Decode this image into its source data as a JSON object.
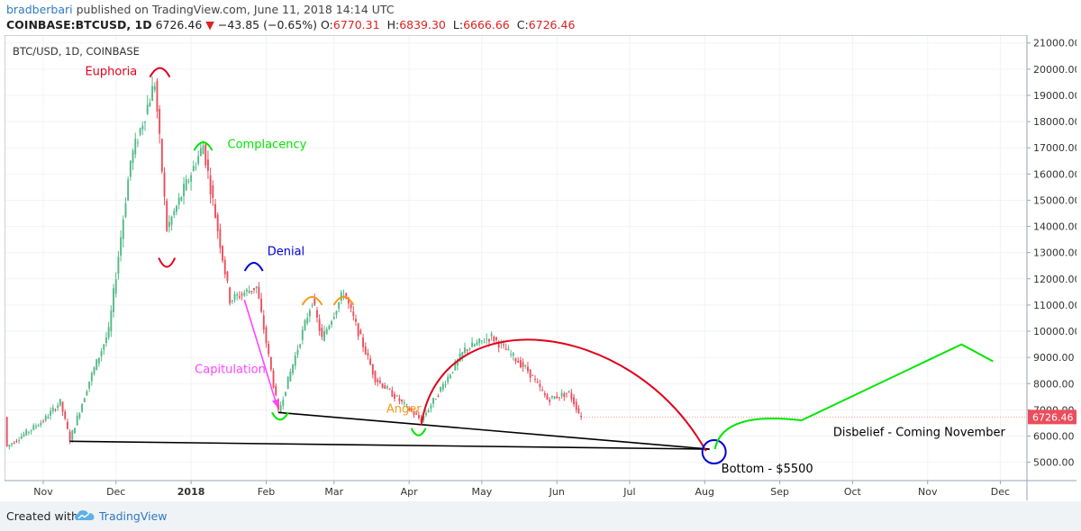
{
  "header": {
    "author": "bradberbari",
    "published": "published on TradingView.com, June 11, 2018 14:14 UTC",
    "symbol": "COINBASE:BTCUSD, 1D",
    "price": "6726.46",
    "change_arrow": "▼",
    "change": "−43.85 (−0.65%)",
    "open_label": "O:",
    "open": "6770.31",
    "high_label": "H:",
    "high": "6839.30",
    "low_label": "L:",
    "low": "6666.66",
    "close_label": "C:",
    "close": "6726.46"
  },
  "footer": {
    "created_with": "Created with",
    "brand": "TradingView",
    "logo_icon": "tradingview-cloud-icon"
  },
  "colors": {
    "bull": "#53b987",
    "bear": "#eb4d5c",
    "red_annot": "#e2001a",
    "green_annot": "#00e600",
    "blue_annot": "#0000d6",
    "orange_annot": "#f29b1d",
    "magenta_annot": "#ff44ff",
    "price_tag": "#eb4d5c"
  },
  "chart_data": {
    "type": "candlestick",
    "title": "BTC/USD, 1D, COINBASE",
    "x_ticks": [
      "Nov",
      "Dec",
      "2018",
      "Feb",
      "Mar",
      "Apr",
      "May",
      "Jun",
      "Jul",
      "Aug",
      "Sep",
      "Oct",
      "Nov",
      "Dec"
    ],
    "y_ticks": [
      "21000.00",
      "20000.00",
      "19000.00",
      "18000.00",
      "17000.00",
      "16000.00",
      "15000.00",
      "14000.00",
      "13000.00",
      "12000.00",
      "11000.00",
      "10000.00",
      "9000.00",
      "8000.00",
      "7000.00",
      "6000.00",
      "5000.00"
    ],
    "ylim": [
      4300,
      21300
    ],
    "xlim": [
      "2017-10-16",
      "2018-12-12"
    ],
    "last_price_label": "6726.46",
    "ohlc_key_points": [
      {
        "date": "2017-10-17",
        "price": 5600
      },
      {
        "date": "2017-11-01",
        "price": 6600
      },
      {
        "date": "2017-11-08",
        "price": 7300
      },
      {
        "date": "2017-11-12",
        "price": 5850
      },
      {
        "date": "2017-11-20",
        "price": 8100
      },
      {
        "date": "2017-11-28",
        "price": 10000
      },
      {
        "date": "2017-12-07",
        "price": 16500
      },
      {
        "date": "2017-12-17",
        "price": 19500
      },
      {
        "date": "2017-12-22",
        "price": 13900
      },
      {
        "date": "2018-01-06",
        "price": 17100
      },
      {
        "date": "2018-01-17",
        "price": 11200
      },
      {
        "date": "2018-01-28",
        "price": 11700
      },
      {
        "date": "2018-02-06",
        "price": 6900
      },
      {
        "date": "2018-02-20",
        "price": 11200
      },
      {
        "date": "2018-02-24",
        "price": 9700
      },
      {
        "date": "2018-03-05",
        "price": 11500
      },
      {
        "date": "2018-03-18",
        "price": 8200
      },
      {
        "date": "2018-04-06",
        "price": 6600
      },
      {
        "date": "2018-04-24",
        "price": 9300
      },
      {
        "date": "2018-05-05",
        "price": 9800
      },
      {
        "date": "2018-05-20",
        "price": 8500
      },
      {
        "date": "2018-05-28",
        "price": 7400
      },
      {
        "date": "2018-06-06",
        "price": 7650
      },
      {
        "date": "2018-06-11",
        "price": 6726.46
      }
    ],
    "annotations": [
      {
        "label": "Euphoria",
        "color": "red",
        "date": "2017-12-17",
        "price": 19800
      },
      {
        "label": "Complacency",
        "color": "green",
        "date": "2018-01-06",
        "price": 17300
      },
      {
        "label": "Denial",
        "color": "blue",
        "date": "2018-01-28",
        "price": 12800
      },
      {
        "label": "Capitulation",
        "color": "magenta",
        "date": "2018-02-06",
        "price": 6900
      },
      {
        "label": "Anger",
        "color": "orange",
        "date": "2018-04-06",
        "price": 6600
      },
      {
        "label": "Bottom - $5500",
        "color": "blue",
        "date": "2018-08-03",
        "price": 5500
      },
      {
        "label": "Disbelief - Coming November",
        "color": "green",
        "date": "2018-11-15",
        "price": 9500
      }
    ],
    "trendlines": [
      {
        "from": {
          "date": "2017-11-12",
          "price": 5800
        },
        "to": {
          "date": "2018-08-03",
          "price": 5500
        }
      },
      {
        "from": {
          "date": "2018-02-06",
          "price": 6900
        },
        "to": {
          "date": "2018-08-03",
          "price": 5500
        }
      }
    ],
    "projection": [
      {
        "date": "2018-08-03",
        "price": 5500
      },
      {
        "date": "2018-08-20",
        "price": 6800
      },
      {
        "date": "2018-09-10",
        "price": 6600
      },
      {
        "date": "2018-11-15",
        "price": 9500
      },
      {
        "date": "2018-11-28",
        "price": 8850
      }
    ]
  }
}
